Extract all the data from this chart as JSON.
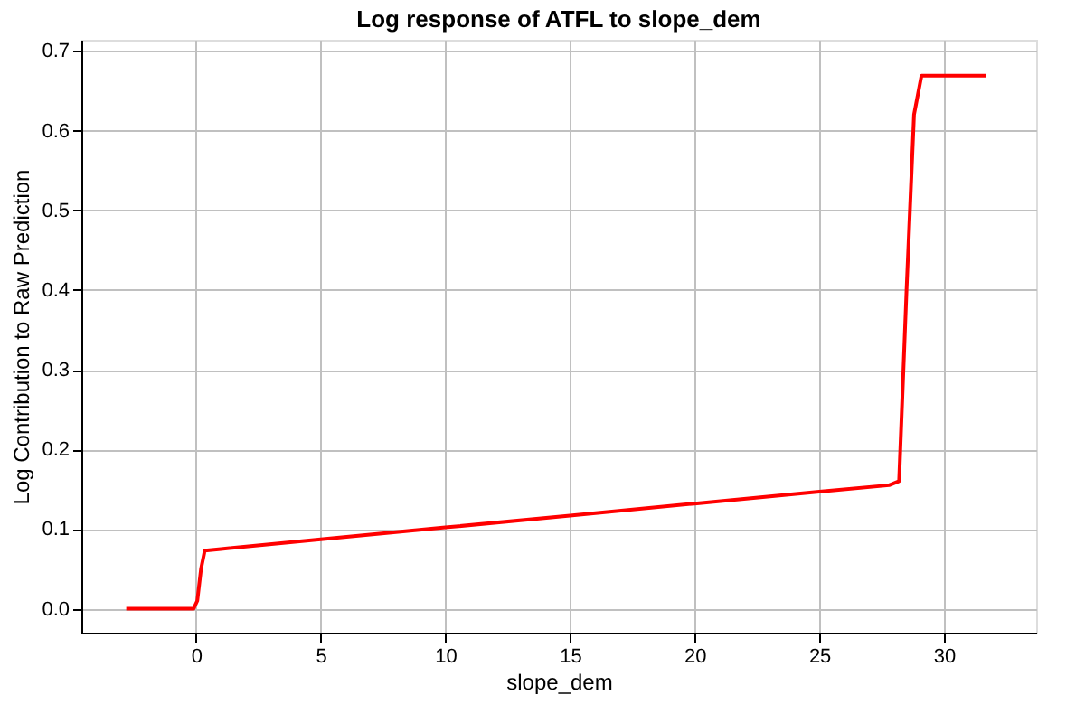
{
  "chart_data": {
    "type": "line",
    "title": "Log response of ATFL to slope_dem",
    "xlabel": "slope_dem",
    "ylabel": "Log Contribution to Raw Prediction",
    "x": [
      -2.8,
      -1,
      -0.1,
      0.05,
      0.2,
      0.35,
      1,
      5,
      10,
      15,
      20,
      25,
      27.8,
      28.2,
      28.5,
      28.8,
      29.1,
      30,
      31.7
    ],
    "series": [
      {
        "color": "#ff0000",
        "values": [
          0,
          0,
          0,
          0.01,
          0.05,
          0.073,
          0.075,
          0.087,
          0.102,
          0.117,
          0.132,
          0.147,
          0.155,
          0.16,
          0.4,
          0.62,
          0.669,
          0.669,
          0.669
        ]
      }
    ],
    "xlim": [
      -4.6,
      33.7
    ],
    "ylim": [
      -0.03,
      0.714
    ],
    "xticks": [
      0,
      5,
      10,
      15,
      20,
      25,
      30
    ],
    "yticks": [
      {
        "value": 0,
        "label": "0.0"
      },
      {
        "value": 0.1,
        "label": "0.1"
      },
      {
        "value": 0.2,
        "label": "0.2"
      },
      {
        "value": 0.3,
        "label": "0.3"
      },
      {
        "value": 0.4,
        "label": "0.4"
      },
      {
        "value": 0.5,
        "label": "0.5"
      },
      {
        "value": 0.6,
        "label": "0.6"
      },
      {
        "value": 0.7,
        "label": "0.7"
      }
    ],
    "grid": true,
    "marker": "none",
    "line_style": "solid"
  }
}
